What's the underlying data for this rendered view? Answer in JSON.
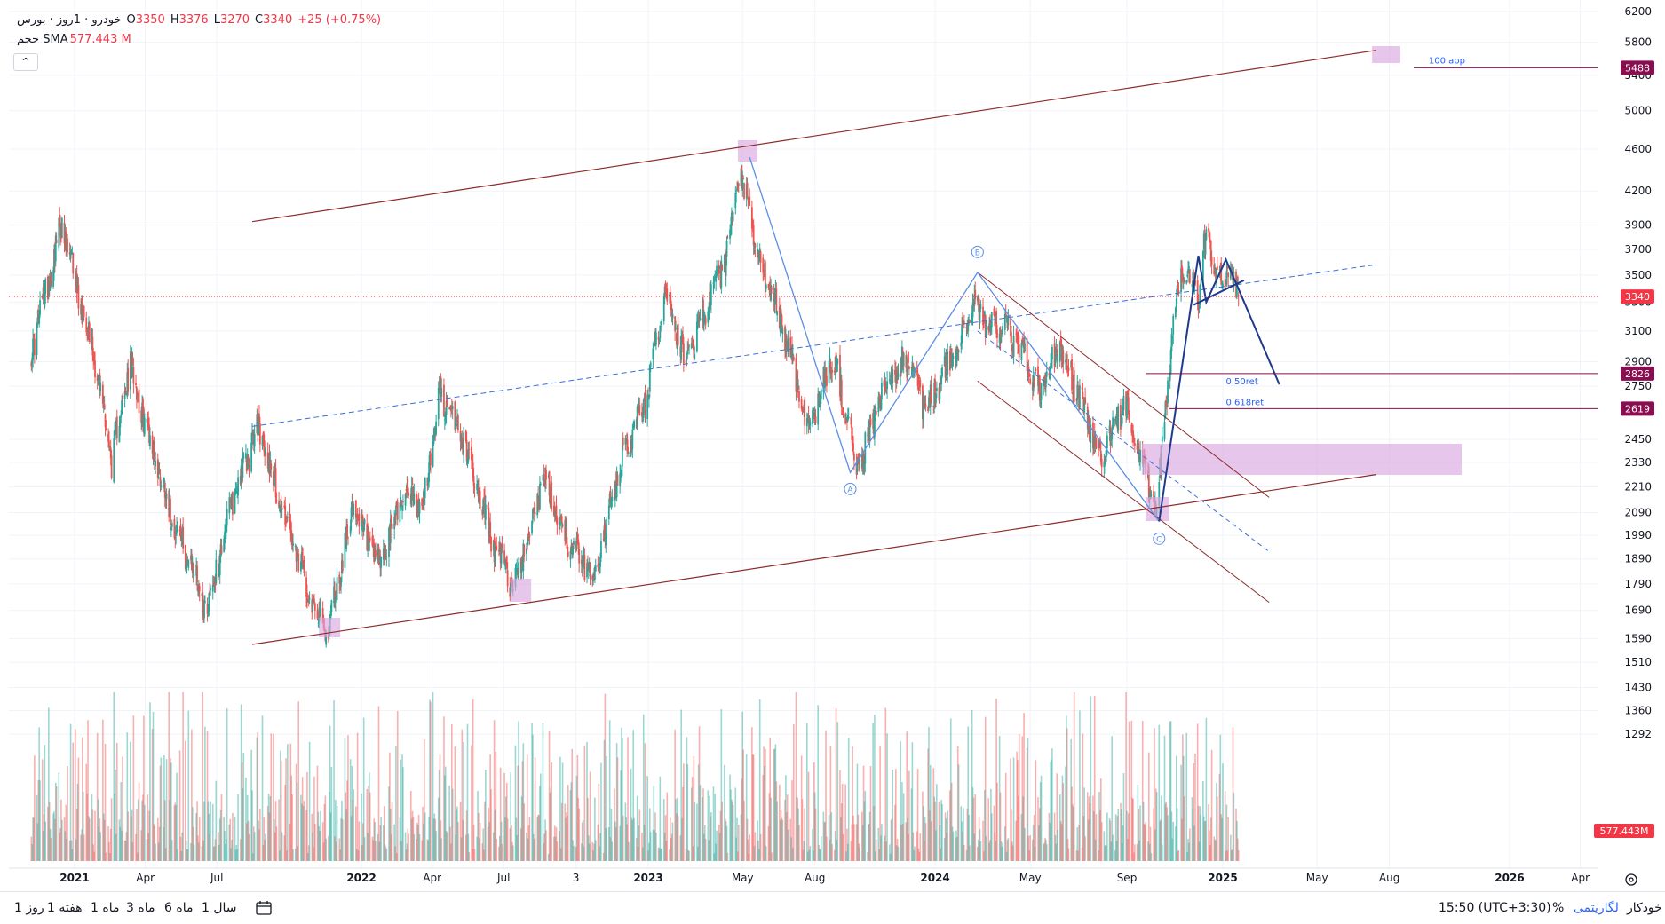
{
  "legend": {
    "title": "خودرو · 1روز · بورس",
    "open_label": "O",
    "open": "3350",
    "high_label": "H",
    "high": "3376",
    "low_label": "L",
    "low": "3270",
    "close_label": "C",
    "close": "3340",
    "change": "+25 (+0.75%)",
    "volume_label": "حجم SMA",
    "volume_value": "577.443 M",
    "collapse_icon": "^"
  },
  "price_axis": {
    "ticks": [
      "6200",
      "5800",
      "5400",
      "5000",
      "4600",
      "4200",
      "3900",
      "3700",
      "3500",
      "3300",
      "3100",
      "2900",
      "2750",
      "2450",
      "2330",
      "2210",
      "2090",
      "1990",
      "1890",
      "1790",
      "1690",
      "1590",
      "1510",
      "1430",
      "1360",
      "1292"
    ],
    "badges": [
      {
        "value": "5488",
        "color": "#880e4f"
      },
      {
        "value": "3340",
        "color": "#f23645"
      },
      {
        "value": "2826",
        "color": "#880e4f"
      },
      {
        "value": "2619",
        "color": "#880e4f"
      },
      {
        "value": "577.443M",
        "color": "#f23645"
      }
    ]
  },
  "time_axis": {
    "ticks": [
      {
        "label": "2021",
        "bold": true
      },
      {
        "label": "Apr",
        "bold": false
      },
      {
        "label": "Jul",
        "bold": false
      },
      {
        "label": "2022",
        "bold": true
      },
      {
        "label": "Apr",
        "bold": false
      },
      {
        "label": "Jul",
        "bold": false
      },
      {
        "label": "3",
        "bold": false
      },
      {
        "label": "2023",
        "bold": true
      },
      {
        "label": "May",
        "bold": false
      },
      {
        "label": "Aug",
        "bold": false
      },
      {
        "label": "2024",
        "bold": true
      },
      {
        "label": "May",
        "bold": false
      },
      {
        "label": "Sep",
        "bold": false
      },
      {
        "label": "2025",
        "bold": true
      },
      {
        "label": "May",
        "bold": false
      },
      {
        "label": "Aug",
        "bold": false
      },
      {
        "label": "2026",
        "bold": true
      },
      {
        "label": "Apr",
        "bold": false
      }
    ]
  },
  "annotations": {
    "wave_labels": [
      "A",
      "B",
      "C"
    ],
    "fib_labels": [
      "0.50ret",
      "0.618ret"
    ],
    "target_label": "100 app"
  },
  "colors": {
    "up": "#26a69a",
    "down": "#ef5350",
    "channel": "#8d2a2a",
    "wave": "#5b8ee6",
    "forecast": "#1e3a8a",
    "zone": "#d9a8e0",
    "dashed": "#3a6fd8"
  },
  "bottom_bar": {
    "timeframes": [
      "1 روز",
      "1 هفته",
      "1 ماه",
      "3 ماه",
      "6 ماه",
      "1 سال"
    ],
    "time": "15:50 (UTC+3:30)",
    "percent": "%",
    "log": "لگاریتمی",
    "auto": "خودکار"
  },
  "chart_data": {
    "type": "candlestick",
    "symbol_title": "خودرو · 1روز · بورس",
    "last": {
      "open": 3350,
      "high": 3376,
      "low": 3270,
      "close": 3340,
      "change": "+25 (+0.75%)"
    },
    "price_scale": "log",
    "price_levels": [
      5488,
      3340,
      2826,
      2619
    ],
    "time_range": [
      "2020-11",
      "2026-05"
    ],
    "anchors": [
      {
        "date": "2020-11-06",
        "price": 2950
      },
      {
        "date": "2020-12-15",
        "price": 3900
      },
      {
        "date": "2021-01-26",
        "price": 2950
      },
      {
        "date": "2021-02-17",
        "price": 2350
      },
      {
        "date": "2021-03-13",
        "price": 2880
      },
      {
        "date": "2021-04-10",
        "price": 2400
      },
      {
        "date": "2021-05-12",
        "price": 2000
      },
      {
        "date": "2021-06-19",
        "price": 1700
      },
      {
        "date": "2021-07-20",
        "price": 2150
      },
      {
        "date": "2021-08-23",
        "price": 2520
      },
      {
        "date": "2021-10-10",
        "price": 1900
      },
      {
        "date": "2021-11-18",
        "price": 1600
      },
      {
        "date": "2021-12-20",
        "price": 2100
      },
      {
        "date": "2022-01-24",
        "price": 1850
      },
      {
        "date": "2022-02-24",
        "price": 2200
      },
      {
        "date": "2022-03-20",
        "price": 2100
      },
      {
        "date": "2022-04-10",
        "price": 2700
      },
      {
        "date": "2022-05-11",
        "price": 2450
      },
      {
        "date": "2022-06-18",
        "price": 1950
      },
      {
        "date": "2022-07-14",
        "price": 1780
      },
      {
        "date": "2022-08-20",
        "price": 2250
      },
      {
        "date": "2022-09-23",
        "price": 1950
      },
      {
        "date": "2022-10-24",
        "price": 1820
      },
      {
        "date": "2022-11-29",
        "price": 2350
      },
      {
        "date": "2022-12-27",
        "price": 2650
      },
      {
        "date": "2023-01-24",
        "price": 3400
      },
      {
        "date": "2023-02-17",
        "price": 2900
      },
      {
        "date": "2023-04-08",
        "price": 3600
      },
      {
        "date": "2023-04-29",
        "price": 4350
      },
      {
        "date": "2023-05-20",
        "price": 3650
      },
      {
        "date": "2023-06-23",
        "price": 3100
      },
      {
        "date": "2023-07-24",
        "price": 2500
      },
      {
        "date": "2023-08-24",
        "price": 2950
      },
      {
        "date": "2023-09-24",
        "price": 2300
      },
      {
        "date": "2023-10-22",
        "price": 2650
      },
      {
        "date": "2023-11-23",
        "price": 2950
      },
      {
        "date": "2023-12-20",
        "price": 2600
      },
      {
        "date": "2024-01-25",
        "price": 2950
      },
      {
        "date": "2024-02-19",
        "price": 3300
      },
      {
        "date": "2024-03-09",
        "price": 3150
      },
      {
        "date": "2024-04-02",
        "price": 3100
      },
      {
        "date": "2024-04-22",
        "price": 2950
      },
      {
        "date": "2024-05-13",
        "price": 2700
      },
      {
        "date": "2024-06-07",
        "price": 3000
      },
      {
        "date": "2024-07-06",
        "price": 2650
      },
      {
        "date": "2024-07-29",
        "price": 2350
      },
      {
        "date": "2024-08-29",
        "price": 2650
      },
      {
        "date": "2024-09-11",
        "price": 2500
      },
      {
        "date": "2024-10-08",
        "price": 2080
      },
      {
        "date": "2024-10-31",
        "price": 3200
      },
      {
        "date": "2024-11-10",
        "price": 3600
      },
      {
        "date": "2024-12-01",
        "price": 3350
      },
      {
        "date": "2024-12-11",
        "price": 3850
      },
      {
        "date": "2024-12-30",
        "price": 3450
      },
      {
        "date": "2025-01-10",
        "price": 3500
      },
      {
        "date": "2025-01-21",
        "price": 3340
      }
    ],
    "drawings": {
      "upper_channel": [
        {
          "date": "2021-08-15",
          "price": 3930
        },
        {
          "date": "2025-07-15",
          "price": 5700
        }
      ],
      "lower_channel": [
        {
          "date": "2021-08-15",
          "price": 1570
        },
        {
          "date": "2025-07-15",
          "price": 2270
        }
      ],
      "dashed_midline": [
        {
          "date": "2021-08-15",
          "price": 2520
        },
        {
          "date": "2025-07-15",
          "price": 3580
        }
      ],
      "abc_path": [
        {
          "date": "2023-05-10",
          "price": 4520
        },
        {
          "date": "2023-09-15",
          "price": 2280
        },
        {
          "date": "2024-02-24",
          "price": 3520
        },
        {
          "date": "2024-10-12",
          "price": 2050
        }
      ],
      "wave_points": [
        {
          "label": "A",
          "date": "2023-09-15",
          "price": 2200
        },
        {
          "label": "B",
          "date": "2024-02-24",
          "price": 3680
        },
        {
          "label": "C",
          "date": "2024-10-12",
          "price": 1975
        }
      ],
      "forecast_path": [
        {
          "date": "2024-10-12",
          "price": 2050
        },
        {
          "date": "2024-12-01",
          "price": 3650
        },
        {
          "date": "2024-12-11",
          "price": 3300
        },
        {
          "date": "2025-01-05",
          "price": 3620
        },
        {
          "date": "2025-03-14",
          "price": 2760
        }
      ],
      "retracement": {
        "level_050": 2826,
        "level_0618": 2619
      },
      "target": {
        "value": 5488,
        "label": "100 app"
      }
    },
    "volume": {
      "sma": "577.443 M"
    }
  }
}
